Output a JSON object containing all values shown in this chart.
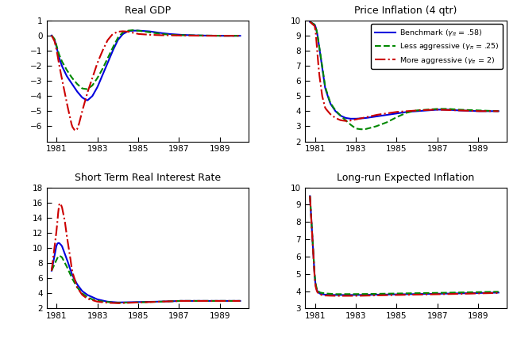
{
  "title_gdp": "Real GDP",
  "title_infl": "Price Inflation (4 qtr)",
  "title_rate": "Short Term Real Interest Rate",
  "title_lrinfl": "Long-run Expected Inflation",
  "legend_labels": [
    "Benchmark ($\\gamma_\\pi$ = .58)",
    "Less aggressive ($\\gamma_\\pi$ = .25)",
    "More aggressive ($\\gamma_\\pi$ = 2)"
  ],
  "colors": [
    "#0000dd",
    "#008800",
    "#cc0000"
  ],
  "linestyles": [
    "-",
    "--",
    "-."
  ],
  "linewidths": [
    1.5,
    1.5,
    1.5
  ],
  "xstart": 1980.5,
  "xend": 1990.4,
  "xticks": [
    1981,
    1983,
    1985,
    1987,
    1989
  ],
  "gdp_ylim": [
    -7,
    1
  ],
  "gdp_yticks": [
    -6,
    -5,
    -4,
    -3,
    -2,
    -1,
    0,
    1
  ],
  "infl_ylim": [
    2,
    10
  ],
  "infl_yticks": [
    2,
    3,
    4,
    5,
    6,
    7,
    8,
    9,
    10
  ],
  "rate_ylim": [
    2,
    18
  ],
  "rate_yticks": [
    2,
    4,
    6,
    8,
    10,
    12,
    14,
    16,
    18
  ],
  "lrinfl_ylim": [
    3,
    10
  ],
  "lrinfl_yticks": [
    3,
    4,
    5,
    6,
    7,
    8,
    9,
    10
  ],
  "gdp_bench_x": [
    1980.75,
    1980.9,
    1981.0,
    1981.1,
    1981.25,
    1981.5,
    1981.75,
    1982.0,
    1982.25,
    1982.5,
    1982.75,
    1983.0,
    1983.25,
    1983.5,
    1983.75,
    1984.0,
    1984.25,
    1984.5,
    1984.75,
    1985.0,
    1985.5,
    1986.0,
    1986.5,
    1987.0,
    1987.5,
    1988.0,
    1989.0,
    1990.0
  ],
  "gdp_bench_y": [
    0.0,
    -0.3,
    -0.8,
    -1.4,
    -2.0,
    -2.7,
    -3.2,
    -3.7,
    -4.1,
    -4.3,
    -4.0,
    -3.4,
    -2.6,
    -1.8,
    -1.0,
    -0.3,
    0.1,
    0.28,
    0.32,
    0.32,
    0.28,
    0.18,
    0.1,
    0.05,
    0.02,
    0.0,
    -0.02,
    -0.02
  ],
  "gdp_less_x": [
    1980.75,
    1980.9,
    1981.0,
    1981.1,
    1981.25,
    1981.5,
    1981.75,
    1982.0,
    1982.25,
    1982.5,
    1982.75,
    1983.0,
    1983.25,
    1983.5,
    1983.75,
    1984.0,
    1984.25,
    1984.5,
    1984.75,
    1985.0,
    1985.5,
    1986.0,
    1986.5,
    1987.0,
    1988.0,
    1989.0,
    1990.0
  ],
  "gdp_less_y": [
    0.0,
    -0.25,
    -0.7,
    -1.2,
    -1.7,
    -2.3,
    -2.8,
    -3.2,
    -3.5,
    -3.55,
    -3.3,
    -2.8,
    -2.2,
    -1.5,
    -0.8,
    -0.15,
    0.22,
    0.32,
    0.35,
    0.32,
    0.22,
    0.12,
    0.05,
    0.02,
    0.0,
    -0.02,
    -0.02
  ],
  "gdp_more_x": [
    1980.75,
    1980.9,
    1981.0,
    1981.1,
    1981.2,
    1981.35,
    1981.5,
    1981.65,
    1981.75,
    1981.9,
    1982.0,
    1982.1,
    1982.25,
    1982.5,
    1982.75,
    1983.0,
    1983.25,
    1983.5,
    1983.75,
    1984.0,
    1984.25,
    1984.5,
    1984.75,
    1985.0,
    1985.5,
    1986.0,
    1987.0,
    1988.0,
    1989.0,
    1990.0
  ],
  "gdp_more_y": [
    0.0,
    -0.4,
    -1.0,
    -1.8,
    -2.5,
    -3.5,
    -4.5,
    -5.4,
    -6.0,
    -6.3,
    -6.2,
    -5.8,
    -5.0,
    -3.8,
    -2.8,
    -1.8,
    -1.0,
    -0.3,
    0.1,
    0.25,
    0.28,
    0.25,
    0.18,
    0.1,
    0.05,
    0.02,
    0.0,
    -0.02,
    -0.02,
    -0.02
  ],
  "infl_bench_x": [
    1980.75,
    1981.0,
    1981.1,
    1981.25,
    1981.5,
    1981.75,
    1982.0,
    1982.25,
    1982.5,
    1982.75,
    1983.0,
    1983.25,
    1983.5,
    1984.0,
    1984.5,
    1985.0,
    1985.5,
    1986.0,
    1986.5,
    1987.0,
    1987.5,
    1988.0,
    1989.0,
    1990.0
  ],
  "infl_bench_y": [
    9.9,
    9.7,
    9.2,
    7.8,
    5.5,
    4.5,
    4.0,
    3.7,
    3.55,
    3.5,
    3.5,
    3.52,
    3.55,
    3.65,
    3.75,
    3.85,
    3.95,
    4.0,
    4.05,
    4.1,
    4.1,
    4.05,
    4.0,
    4.0
  ],
  "infl_less_x": [
    1980.75,
    1981.0,
    1981.1,
    1981.25,
    1981.5,
    1981.75,
    1982.0,
    1982.25,
    1982.5,
    1982.75,
    1983.0,
    1983.25,
    1983.5,
    1984.0,
    1984.5,
    1985.0,
    1985.5,
    1986.0,
    1986.5,
    1987.0,
    1987.5,
    1988.0,
    1989.0,
    1990.0
  ],
  "infl_less_y": [
    9.9,
    9.7,
    9.2,
    7.9,
    5.6,
    4.55,
    4.05,
    3.7,
    3.4,
    3.1,
    2.85,
    2.8,
    2.82,
    3.0,
    3.25,
    3.6,
    3.9,
    4.05,
    4.1,
    4.15,
    4.15,
    4.1,
    4.05,
    4.0
  ],
  "infl_more_x": [
    1980.75,
    1981.0,
    1981.05,
    1981.1,
    1981.2,
    1981.35,
    1981.5,
    1981.75,
    1982.0,
    1982.25,
    1982.5,
    1982.75,
    1983.0,
    1983.5,
    1984.0,
    1984.5,
    1985.0,
    1985.5,
    1986.0,
    1986.5,
    1987.0,
    1988.0,
    1989.0,
    1990.0
  ],
  "infl_more_y": [
    9.9,
    9.6,
    9.0,
    8.0,
    6.5,
    5.0,
    4.2,
    3.8,
    3.55,
    3.4,
    3.35,
    3.38,
    3.45,
    3.6,
    3.75,
    3.85,
    3.95,
    4.0,
    4.05,
    4.08,
    4.1,
    4.05,
    4.0,
    4.0
  ],
  "rate_bench_x": [
    1980.75,
    1981.0,
    1981.1,
    1981.25,
    1981.5,
    1981.75,
    1982.0,
    1982.25,
    1982.5,
    1982.75,
    1983.0,
    1983.5,
    1984.0,
    1985.0,
    1986.0,
    1987.0,
    1988.0,
    1990.0
  ],
  "rate_bench_y": [
    7.0,
    10.5,
    10.7,
    10.3,
    8.5,
    6.5,
    5.2,
    4.3,
    3.8,
    3.5,
    3.2,
    2.9,
    2.8,
    2.85,
    2.9,
    3.0,
    3.0,
    3.0
  ],
  "rate_less_x": [
    1980.75,
    1981.0,
    1981.1,
    1981.25,
    1981.5,
    1981.75,
    1982.0,
    1982.25,
    1982.5,
    1982.75,
    1983.0,
    1983.5,
    1984.0,
    1985.0,
    1986.0,
    1987.0,
    1990.0
  ],
  "rate_less_y": [
    7.0,
    8.5,
    9.0,
    8.8,
    7.5,
    6.0,
    4.8,
    4.0,
    3.5,
    3.2,
    3.0,
    2.85,
    2.75,
    2.8,
    2.9,
    3.0,
    3.0
  ],
  "rate_more_x": [
    1980.75,
    1981.0,
    1981.05,
    1981.1,
    1981.15,
    1981.25,
    1981.4,
    1981.5,
    1981.65,
    1981.75,
    1982.0,
    1982.25,
    1982.5,
    1982.75,
    1983.0,
    1983.5,
    1984.0,
    1985.0,
    1986.0,
    1987.0,
    1990.0
  ],
  "rate_more_y": [
    7.0,
    12.5,
    14.0,
    15.5,
    16.0,
    15.5,
    13.5,
    11.5,
    9.0,
    7.0,
    4.8,
    3.8,
    3.3,
    3.1,
    2.9,
    2.75,
    2.7,
    2.8,
    2.9,
    3.0,
    3.0
  ],
  "lrinfl_bench_x": [
    1980.75,
    1980.85,
    1981.0,
    1981.1,
    1981.25,
    1981.5,
    1982.0,
    1983.0,
    1984.0,
    1985.0,
    1987.0,
    1989.0,
    1990.0
  ],
  "lrinfl_bench_y": [
    9.5,
    7.5,
    4.5,
    4.0,
    3.85,
    3.8,
    3.78,
    3.78,
    3.8,
    3.82,
    3.85,
    3.9,
    3.92
  ],
  "lrinfl_less_x": [
    1980.75,
    1980.85,
    1981.0,
    1981.1,
    1981.25,
    1981.5,
    1982.0,
    1983.0,
    1984.0,
    1985.0,
    1987.0,
    1989.0,
    1990.0
  ],
  "lrinfl_less_y": [
    9.5,
    7.5,
    4.6,
    4.05,
    3.92,
    3.87,
    3.83,
    3.83,
    3.85,
    3.87,
    3.9,
    3.95,
    3.97
  ],
  "lrinfl_more_x": [
    1980.75,
    1980.85,
    1981.0,
    1981.1,
    1981.25,
    1981.5,
    1982.0,
    1983.0,
    1984.0,
    1985.0,
    1987.0,
    1989.0,
    1990.0
  ],
  "lrinfl_more_y": [
    9.5,
    7.5,
    4.4,
    3.95,
    3.8,
    3.75,
    3.73,
    3.73,
    3.76,
    3.78,
    3.82,
    3.87,
    3.9
  ]
}
